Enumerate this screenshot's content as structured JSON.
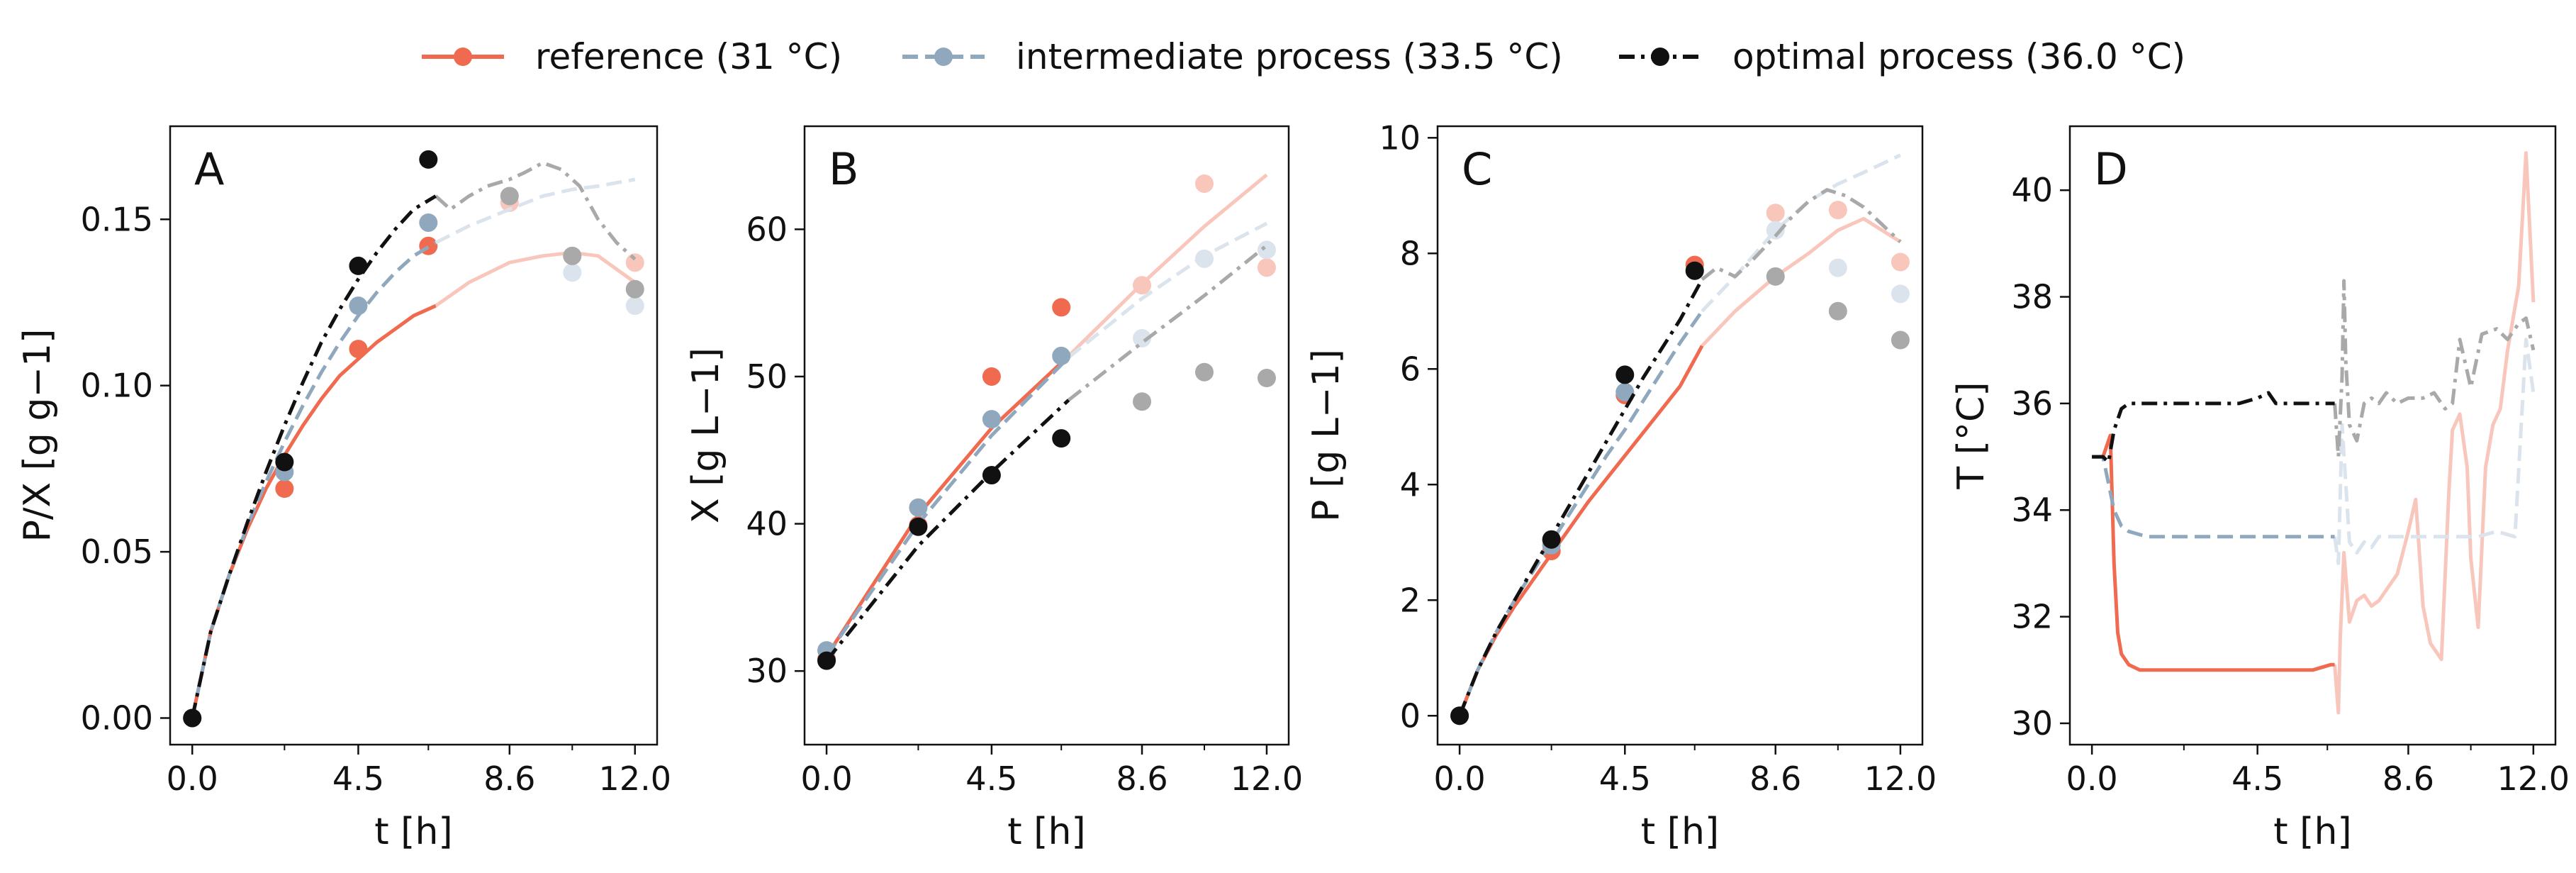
{
  "legend": [
    {
      "label": "reference (31 °C)",
      "color": "#f06a50",
      "linestyle": "solid",
      "series": "reference"
    },
    {
      "label": "intermediate process (33.5 °C)",
      "color": "#8fa8bd",
      "linestyle": "dashed",
      "series": "intermediate"
    },
    {
      "label": "optimal process (36.0 °C)",
      "color": "#111111",
      "linestyle": "dashdot",
      "series": "optimal"
    }
  ],
  "colors": {
    "reference": "#f06a50",
    "intermediate": "#8fa8bd",
    "optimal": "#111111",
    "reference_faded": "#f9c6bc",
    "intermediate_faded": "#dbe4ec",
    "optimal_faded": "#a9a9a9"
  },
  "chart_data": [
    {
      "type": "line",
      "panel": "A",
      "xlabel": "t [h]",
      "ylabel": "P/X [g g−1]",
      "xlim": [
        -0.6,
        12.6
      ],
      "ylim": [
        -0.008,
        0.178
      ],
      "xticks": [
        0.0,
        4.5,
        8.6,
        12.0
      ],
      "xtick_labels": [
        "0.0",
        "4.5",
        "8.6",
        "12.0"
      ],
      "xticks_minor": [
        2.5,
        6.4,
        10.3
      ],
      "yticks": [
        0.0,
        0.05,
        0.1,
        0.15
      ],
      "ytick_labels": [
        "0.00",
        "0.05",
        "0.10",
        "0.15"
      ],
      "split_x": 6.6,
      "grid": false,
      "series": [
        {
          "key": "reference",
          "line": {
            "x": [
              0,
              0.5,
              1,
              1.5,
              2,
              2.5,
              3,
              3.5,
              4,
              4.5,
              5,
              5.5,
              6,
              6.6,
              7.5,
              8.6,
              9.5,
              10.3,
              11,
              12
            ],
            "y": [
              0,
              0.026,
              0.043,
              0.057,
              0.069,
              0.079,
              0.088,
              0.096,
              0.103,
              0.108,
              0.113,
              0.117,
              0.121,
              0.124,
              0.131,
              0.137,
              0.139,
              0.14,
              0.139,
              0.131
            ]
          },
          "points": {
            "x": [
              0,
              2.5,
              4.5,
              6.4,
              8.6,
              10.3,
              12.0
            ],
            "y": [
              0,
              0.069,
              0.111,
              0.142,
              0.155,
              0.139,
              0.137
            ]
          }
        },
        {
          "key": "intermediate",
          "line": {
            "x": [
              0,
              0.5,
              1,
              1.5,
              2,
              2.5,
              3,
              3.5,
              4,
              4.5,
              5,
              5.5,
              6,
              6.6,
              7.5,
              8.6,
              9.5,
              10.3,
              11,
              12
            ],
            "y": [
              0,
              0.026,
              0.043,
              0.058,
              0.071,
              0.083,
              0.094,
              0.104,
              0.113,
              0.121,
              0.128,
              0.134,
              0.139,
              0.143,
              0.148,
              0.153,
              0.157,
              0.159,
              0.16,
              0.162
            ]
          },
          "points": {
            "x": [
              0,
              2.5,
              4.5,
              6.4,
              8.6,
              10.3,
              12.0
            ],
            "y": [
              0,
              0.074,
              0.124,
              0.149,
              0.157,
              0.134,
              0.124
            ]
          }
        },
        {
          "key": "optimal",
          "line": {
            "x": [
              0,
              0.5,
              1,
              1.5,
              2,
              2.5,
              3,
              3.5,
              4,
              4.5,
              5,
              5.5,
              6,
              6.6,
              7,
              7.5,
              8,
              8.6,
              9,
              9.5,
              10,
              10.5,
              11,
              11.5,
              12
            ],
            "y": [
              0,
              0.026,
              0.043,
              0.059,
              0.074,
              0.088,
              0.101,
              0.113,
              0.123,
              0.132,
              0.14,
              0.147,
              0.153,
              0.157,
              0.153,
              0.157,
              0.16,
              0.162,
              0.164,
              0.167,
              0.165,
              0.16,
              0.15,
              0.143,
              0.138
            ]
          },
          "points": {
            "x": [
              0,
              2.5,
              4.5,
              6.4,
              8.6,
              10.3,
              12.0
            ],
            "y": [
              0,
              0.077,
              0.136,
              0.168,
              0.157,
              0.139,
              0.129
            ]
          }
        }
      ]
    },
    {
      "type": "line",
      "panel": "B",
      "xlabel": "t [h]",
      "ylabel": "X [g L−1]",
      "xlim": [
        -0.6,
        12.6
      ],
      "ylim": [
        25,
        67
      ],
      "xticks": [
        0.0,
        4.5,
        8.6,
        12.0
      ],
      "xtick_labels": [
        "0.0",
        "4.5",
        "8.6",
        "12.0"
      ],
      "xticks_minor": [
        2.5,
        6.4,
        10.3
      ],
      "yticks": [
        30,
        40,
        50,
        60
      ],
      "ytick_labels": [
        "30",
        "40",
        "50",
        "60"
      ],
      "split_x": 6.6,
      "grid": false,
      "series": [
        {
          "key": "reference",
          "line": {
            "x": [
              0,
              2.5,
              4.5,
              6.6,
              8.6,
              10.3,
              12
            ],
            "y": [
              31,
              40.6,
              46.5,
              51.4,
              56.3,
              60.2,
              63.7
            ]
          },
          "points": {
            "x": [
              0,
              2.5,
              4.5,
              6.4,
              8.6,
              10.3,
              12.0
            ],
            "y": [
              30.8,
              39.9,
              50.0,
              54.7,
              56.2,
              63.1,
              57.4
            ]
          }
        },
        {
          "key": "intermediate",
          "line": {
            "x": [
              0,
              2.5,
              4.5,
              6.6,
              8.6,
              10.3,
              12
            ],
            "y": [
              31,
              40.0,
              46.0,
              51.3,
              55.3,
              58.2,
              60.4
            ]
          },
          "points": {
            "x": [
              0,
              2.5,
              4.5,
              6.4,
              8.6,
              10.3,
              12.0
            ],
            "y": [
              31.4,
              41.1,
              47.1,
              51.4,
              52.6,
              58.0,
              58.6
            ]
          }
        },
        {
          "key": "optimal",
          "line": {
            "x": [
              0,
              2.5,
              4.5,
              6.6,
              8.6,
              10.3,
              12
            ],
            "y": [
              30.7,
              38.5,
              43.5,
              48.4,
              52.3,
              55.5,
              58.9
            ]
          },
          "points": {
            "x": [
              0,
              2.5,
              4.5,
              6.4,
              8.6,
              10.3,
              12.0
            ],
            "y": [
              30.7,
              39.8,
              43.3,
              45.8,
              48.3,
              50.3,
              49.9
            ]
          }
        }
      ]
    },
    {
      "type": "line",
      "panel": "C",
      "xlabel": "t [h]",
      "ylabel": "P [g L−1]",
      "xlim": [
        -0.6,
        12.6
      ],
      "ylim": [
        -0.5,
        10.2
      ],
      "xticks": [
        0.0,
        4.5,
        8.6,
        12.0
      ],
      "xtick_labels": [
        "0.0",
        "4.5",
        "8.6",
        "12.0"
      ],
      "xticks_minor": [
        2.5,
        6.4,
        10.3
      ],
      "yticks": [
        0,
        2,
        4,
        6,
        8,
        10
      ],
      "ytick_labels": [
        "0",
        "2",
        "4",
        "6",
        "8",
        "10"
      ],
      "split_x": 6.6,
      "grid": false,
      "series": [
        {
          "key": "reference",
          "line": {
            "x": [
              0,
              0.5,
              1,
              1.5,
              2,
              2.5,
              3,
              3.5,
              4,
              4.5,
              5,
              5.5,
              6,
              6.6,
              7.5,
              8.6,
              9.5,
              10.3,
              11,
              12
            ],
            "y": [
              0,
              0.8,
              1.4,
              1.9,
              2.35,
              2.8,
              3.25,
              3.7,
              4.1,
              4.5,
              4.9,
              5.3,
              5.7,
              6.4,
              7.0,
              7.6,
              8.0,
              8.4,
              8.6,
              8.2
            ]
          },
          "points": {
            "x": [
              0,
              2.5,
              4.5,
              6.4,
              8.6,
              10.3,
              12.0
            ],
            "y": [
              0,
              2.85,
              5.55,
              7.8,
              8.7,
              8.75,
              7.85
            ]
          }
        },
        {
          "key": "intermediate",
          "line": {
            "x": [
              0,
              0.5,
              1,
              1.5,
              2,
              2.5,
              3,
              3.5,
              4,
              4.5,
              5,
              5.5,
              6,
              6.6,
              7.5,
              8.6,
              9.5,
              10.3,
              11,
              12
            ],
            "y": [
              0,
              0.8,
              1.45,
              2.0,
              2.5,
              3.0,
              3.5,
              4.0,
              4.5,
              4.95,
              5.45,
              5.95,
              6.45,
              7.0,
              7.6,
              8.4,
              8.9,
              9.2,
              9.4,
              9.7
            ]
          },
          "points": {
            "x": [
              0,
              2.5,
              4.5,
              6.4,
              8.6,
              10.3,
              12.0
            ],
            "y": [
              0,
              2.95,
              5.6,
              7.7,
              8.4,
              7.75,
              7.3
            ]
          }
        },
        {
          "key": "optimal",
          "line": {
            "x": [
              0,
              0.5,
              1,
              1.5,
              2,
              2.5,
              3,
              3.5,
              4,
              4.5,
              5,
              5.5,
              6,
              6.6,
              7,
              7.5,
              8,
              8.6,
              9,
              9.5,
              10,
              10.5,
              11,
              11.5,
              12
            ],
            "y": [
              0,
              0.8,
              1.45,
              2.0,
              2.55,
              3.1,
              3.65,
              4.2,
              4.75,
              5.3,
              5.85,
              6.35,
              6.85,
              7.55,
              7.75,
              7.6,
              7.9,
              8.3,
              8.6,
              8.9,
              9.1,
              9.0,
              8.8,
              8.5,
              8.2
            ]
          },
          "points": {
            "x": [
              0,
              2.5,
              4.5,
              6.4,
              8.6,
              10.3,
              12.0
            ],
            "y": [
              0,
              3.05,
              5.9,
              7.7,
              7.6,
              7.0,
              6.5
            ]
          }
        }
      ]
    },
    {
      "type": "line",
      "panel": "D",
      "xlabel": "t [h]",
      "ylabel": "T [°C]",
      "xlim": [
        -0.6,
        12.6
      ],
      "ylim": [
        29.6,
        41.2
      ],
      "xticks": [
        0.0,
        4.5,
        8.6,
        12.0
      ],
      "xtick_labels": [
        "0.0",
        "4.5",
        "8.6",
        "12.0"
      ],
      "xticks_minor": [
        2.5,
        6.4,
        10.3
      ],
      "yticks": [
        30,
        32,
        34,
        36,
        38,
        40
      ],
      "ytick_labels": [
        "30",
        "32",
        "34",
        "36",
        "38",
        "40"
      ],
      "split_x": 6.6,
      "grid": false,
      "series": [
        {
          "key": "reference",
          "line": {
            "x": [
              0,
              0.3,
              0.5,
              0.6,
              0.7,
              0.8,
              1.0,
              1.3,
              2,
              3,
              4,
              5,
              6,
              6.5,
              6.6,
              6.7,
              6.75,
              6.85,
              7.0,
              7.2,
              7.4,
              7.6,
              7.8,
              8.0,
              8.3,
              8.6,
              8.8,
              9.0,
              9.2,
              9.5,
              9.7,
              9.8,
              10.0,
              10.2,
              10.3,
              10.5,
              10.7,
              10.9,
              11.1,
              11.3,
              11.6,
              11.8,
              12.0
            ],
            "y": [
              35.0,
              35.0,
              35.4,
              33.0,
              31.7,
              31.3,
              31.1,
              31.0,
              31.0,
              31.0,
              31.0,
              31.0,
              31.0,
              31.1,
              31.1,
              30.2,
              31.6,
              33.2,
              31.9,
              32.3,
              32.4,
              32.2,
              32.3,
              32.5,
              32.8,
              33.6,
              34.2,
              32.2,
              31.5,
              31.2,
              34.3,
              35.5,
              35.8,
              34.8,
              33.1,
              31.8,
              34.8,
              35.6,
              35.9,
              37.0,
              38.2,
              40.7,
              37.9
            ]
          }
        },
        {
          "key": "intermediate",
          "line": {
            "x": [
              0,
              0.3,
              0.6,
              0.8,
              1.0,
              1.5,
              2,
              3,
              4,
              5,
              6,
              6.6,
              6.7,
              6.8,
              7.0,
              7.2,
              7.4,
              7.6,
              7.8,
              8.0,
              8.3,
              8.6,
              9.0,
              9.5,
              10.0,
              10.5,
              11.0,
              11.5,
              11.8,
              12.0
            ],
            "y": [
              35.0,
              35.0,
              34.0,
              33.7,
              33.6,
              33.5,
              33.5,
              33.5,
              33.5,
              33.5,
              33.5,
              33.5,
              33.0,
              35.6,
              33.4,
              33.2,
              33.4,
              33.3,
              33.5,
              33.5,
              33.5,
              33.5,
              33.5,
              33.5,
              33.5,
              33.5,
              33.6,
              33.5,
              37.2,
              36.2
            ]
          }
        },
        {
          "key": "optimal",
          "line": {
            "x": [
              0,
              0.3,
              0.45,
              0.6,
              0.8,
              1.0,
              1.5,
              2,
              3,
              4,
              4.5,
              4.8,
              5,
              6,
              6.6,
              6.7,
              6.8,
              6.85,
              6.9,
              7.0,
              7.2,
              7.4,
              7.6,
              7.8,
              8.0,
              8.3,
              8.6,
              9.0,
              9.3,
              9.6,
              9.8,
              10.0,
              10.3,
              10.6,
              11.0,
              11.3,
              11.6,
              11.8,
              12.0
            ],
            "y": [
              35.0,
              35.0,
              34.9,
              35.5,
              35.9,
              36.0,
              36.0,
              36.0,
              36.0,
              36.0,
              36.1,
              36.2,
              36.0,
              36.0,
              36.0,
              35.0,
              36.5,
              38.3,
              36.8,
              35.6,
              35.3,
              36.0,
              36.1,
              36.0,
              36.2,
              36.0,
              36.1,
              36.1,
              36.2,
              35.9,
              36.0,
              37.2,
              36.3,
              37.3,
              37.4,
              37.2,
              37.5,
              37.6,
              37.0
            ]
          }
        }
      ]
    }
  ]
}
